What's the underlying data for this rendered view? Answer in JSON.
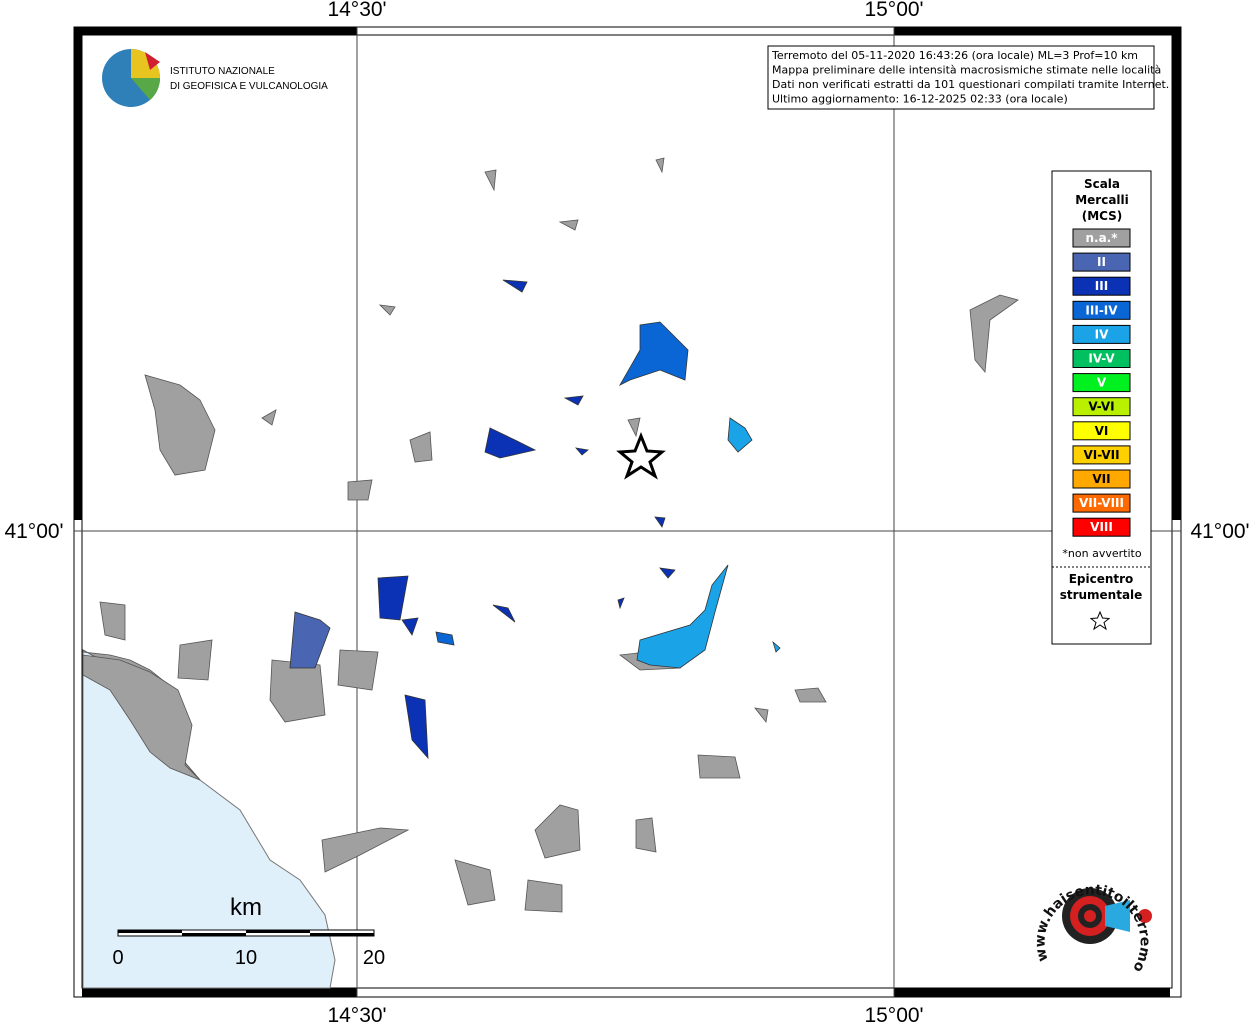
{
  "axis_labels": {
    "top": [
      "14°30'",
      "15°00'"
    ],
    "bottom": [
      "14°30'",
      "15°00'"
    ],
    "left": "41°00'",
    "right": "41°00'"
  },
  "logo": {
    "line1": "ISTITUTO NAZIONALE",
    "line2": "DI GEOFISICA E VULCANOLOGIA"
  },
  "info": [
    "Terremoto del 05-11-2020 16:43:26 (ora locale) ML=3 Prof=10 km",
    "Mappa preliminare delle intensità macrosismiche stimate nelle località",
    "Dati non verificati estratti da 101 questionari compilati tramite Internet.",
    "Ultimo aggiornamento: 16-12-2025 02:33 (ora locale)"
  ],
  "legend": {
    "title": [
      "Scala",
      "Mercalli",
      "(MCS)"
    ],
    "items": [
      {
        "label": "n.a.*",
        "color": "#a0a0a0"
      },
      {
        "label": "II",
        "color": "#4a66b2"
      },
      {
        "label": "III",
        "color": "#0b32b5"
      },
      {
        "label": "III-IV",
        "color": "#0a66d4"
      },
      {
        "label": "IV",
        "color": "#1ba3e8"
      },
      {
        "label": "IV-V",
        "color": "#00c060"
      },
      {
        "label": "V",
        "color": "#00f020"
      },
      {
        "label": "V-VI",
        "color": "#b8f000"
      },
      {
        "label": "VI",
        "color": "#ffff00"
      },
      {
        "label": "VI-VII",
        "color": "#ffd000"
      },
      {
        "label": "VII",
        "color": "#ffa800"
      },
      {
        "label": "VII-VIII",
        "color": "#ff6a00"
      },
      {
        "label": "VIII",
        "color": "#ff0000"
      }
    ],
    "note": "*non avvertito",
    "epicenter": [
      "Epicentro",
      "strumentale"
    ]
  },
  "scale_bar": {
    "unit": "km",
    "labels": [
      0,
      10,
      20
    ]
  },
  "site": "www.haisentitoilterremoto.it"
}
